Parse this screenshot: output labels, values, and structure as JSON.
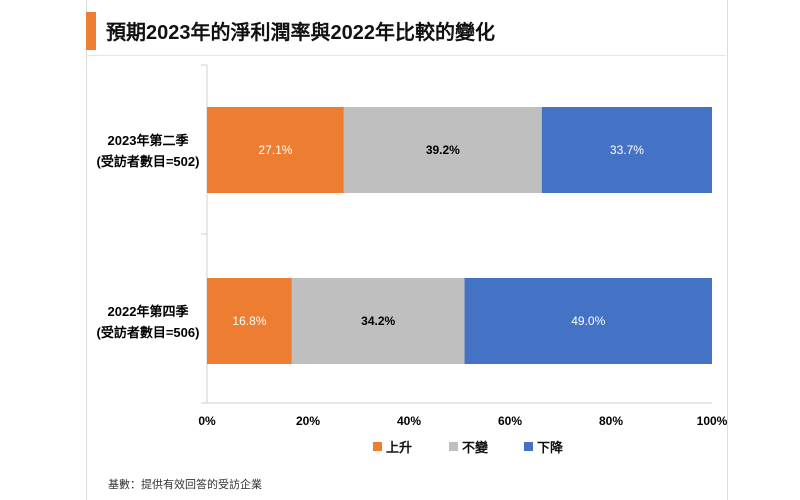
{
  "title": "預期2023年的淨利潤率與2022年比較的變化",
  "footnote": "基數：提供有效回答的受訪企業",
  "colors": {
    "accent": "#ED7D31",
    "up": "#ED7D31",
    "same": "#BFBFBF",
    "down": "#4472C4"
  },
  "chart_data": {
    "type": "bar",
    "orientation": "horizontal",
    "stacked": true,
    "categories": [
      {
        "line1": "2023年第二季",
        "line2": "(受訪者數目=502)"
      },
      {
        "line1": "2022年第四季",
        "line2": "(受訪者數目=506)"
      }
    ],
    "series": [
      {
        "name": "上升",
        "color": "#ED7D31",
        "values": [
          27.1,
          16.8
        ],
        "labels": [
          "27.1%",
          "16.8%"
        ],
        "label_color": "#ffffff"
      },
      {
        "name": "不變",
        "color": "#BFBFBF",
        "values": [
          39.2,
          34.2
        ],
        "labels": [
          "39.2%",
          "34.2%"
        ],
        "label_color": "#000000"
      },
      {
        "name": "下降",
        "color": "#4472C4",
        "values": [
          33.7,
          49.0
        ],
        "labels": [
          "33.7%",
          "49.0%"
        ],
        "label_color": "#ffffff"
      }
    ],
    "x_ticks": [
      "0%",
      "20%",
      "40%",
      "60%",
      "80%",
      "100%"
    ],
    "xlim": [
      0,
      100
    ],
    "grid": false,
    "legend_position": "bottom"
  }
}
